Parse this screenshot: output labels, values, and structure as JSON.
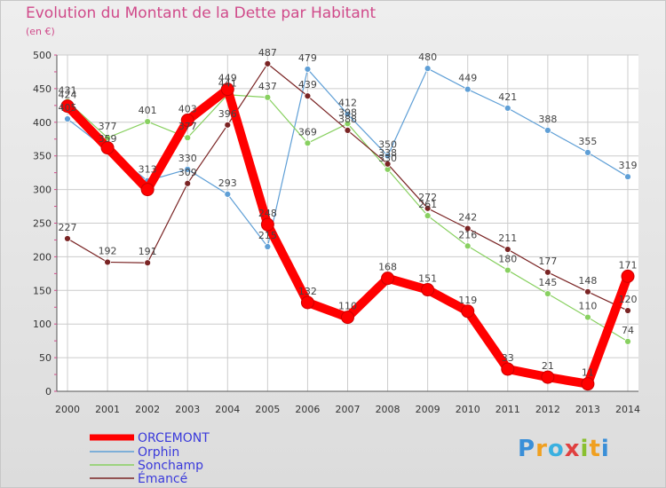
{
  "header": {
    "title": "Evolution du Montant de la Dette par Habitant",
    "subtitle": "(en €)"
  },
  "logo_text": "Proxiti",
  "colors": {
    "title": "#d04a8a",
    "legend_text": "#3a3adb"
  },
  "chart_data": {
    "type": "line",
    "title": "Evolution du Montant de la Dette par Habitant",
    "subtitle": "(en €)",
    "xlabel": "",
    "ylabel": "",
    "x": [
      "2000",
      "2001",
      "2002",
      "2003",
      "2004",
      "2005",
      "2006",
      "2007",
      "2008",
      "2009",
      "2010",
      "2011",
      "2012",
      "2013",
      "2014"
    ],
    "yticks": [
      0,
      50,
      100,
      150,
      200,
      250,
      300,
      350,
      400,
      450,
      500
    ],
    "ylim": [
      0,
      500
    ],
    "grid": true,
    "legend_position": "bottom-left",
    "series": [
      {
        "name": "ORCEMONT",
        "color": "#ff0000",
        "values": [
          424,
          362,
          300,
          403,
          449,
          248,
          132,
          110,
          168,
          151,
          119,
          33,
          21,
          11,
          171
        ],
        "labels": [
          "424",
          "",
          "",
          "403",
          "449",
          "248",
          "132",
          "110",
          "168",
          "151",
          "119",
          "33",
          "21",
          "11",
          "171"
        ]
      },
      {
        "name": "Orphin",
        "color": "#5f9fd6",
        "values": [
          405,
          359,
          313,
          330,
          293,
          215,
          479,
          412,
          350,
          480,
          449,
          421,
          388,
          355,
          319
        ],
        "labels": [
          "405",
          "359",
          "313",
          "330",
          "293",
          "215",
          "479",
          "412",
          "350",
          "480",
          "449",
          "421",
          "388",
          "355",
          "319"
        ]
      },
      {
        "name": "Sonchamp",
        "color": "#88d060",
        "values": [
          431,
          377,
          401,
          377,
          441,
          437,
          369,
          398,
          330,
          261,
          216,
          180,
          145,
          110,
          74
        ],
        "labels": [
          "431",
          "377",
          "401",
          "377",
          "441",
          "437",
          "369",
          "398",
          "330",
          "261",
          "216",
          "180",
          "145",
          "110",
          "74"
        ]
      },
      {
        "name": "Émancé",
        "color": "#7a2424",
        "values": [
          227,
          192,
          191,
          309,
          396,
          487,
          439,
          388,
          338,
          272,
          242,
          211,
          177,
          148,
          120
        ],
        "labels": [
          "227",
          "192",
          "191",
          "309",
          "396",
          "487",
          "439",
          "388",
          "338",
          "272",
          "242",
          "211",
          "177",
          "148",
          "120"
        ]
      }
    ]
  }
}
